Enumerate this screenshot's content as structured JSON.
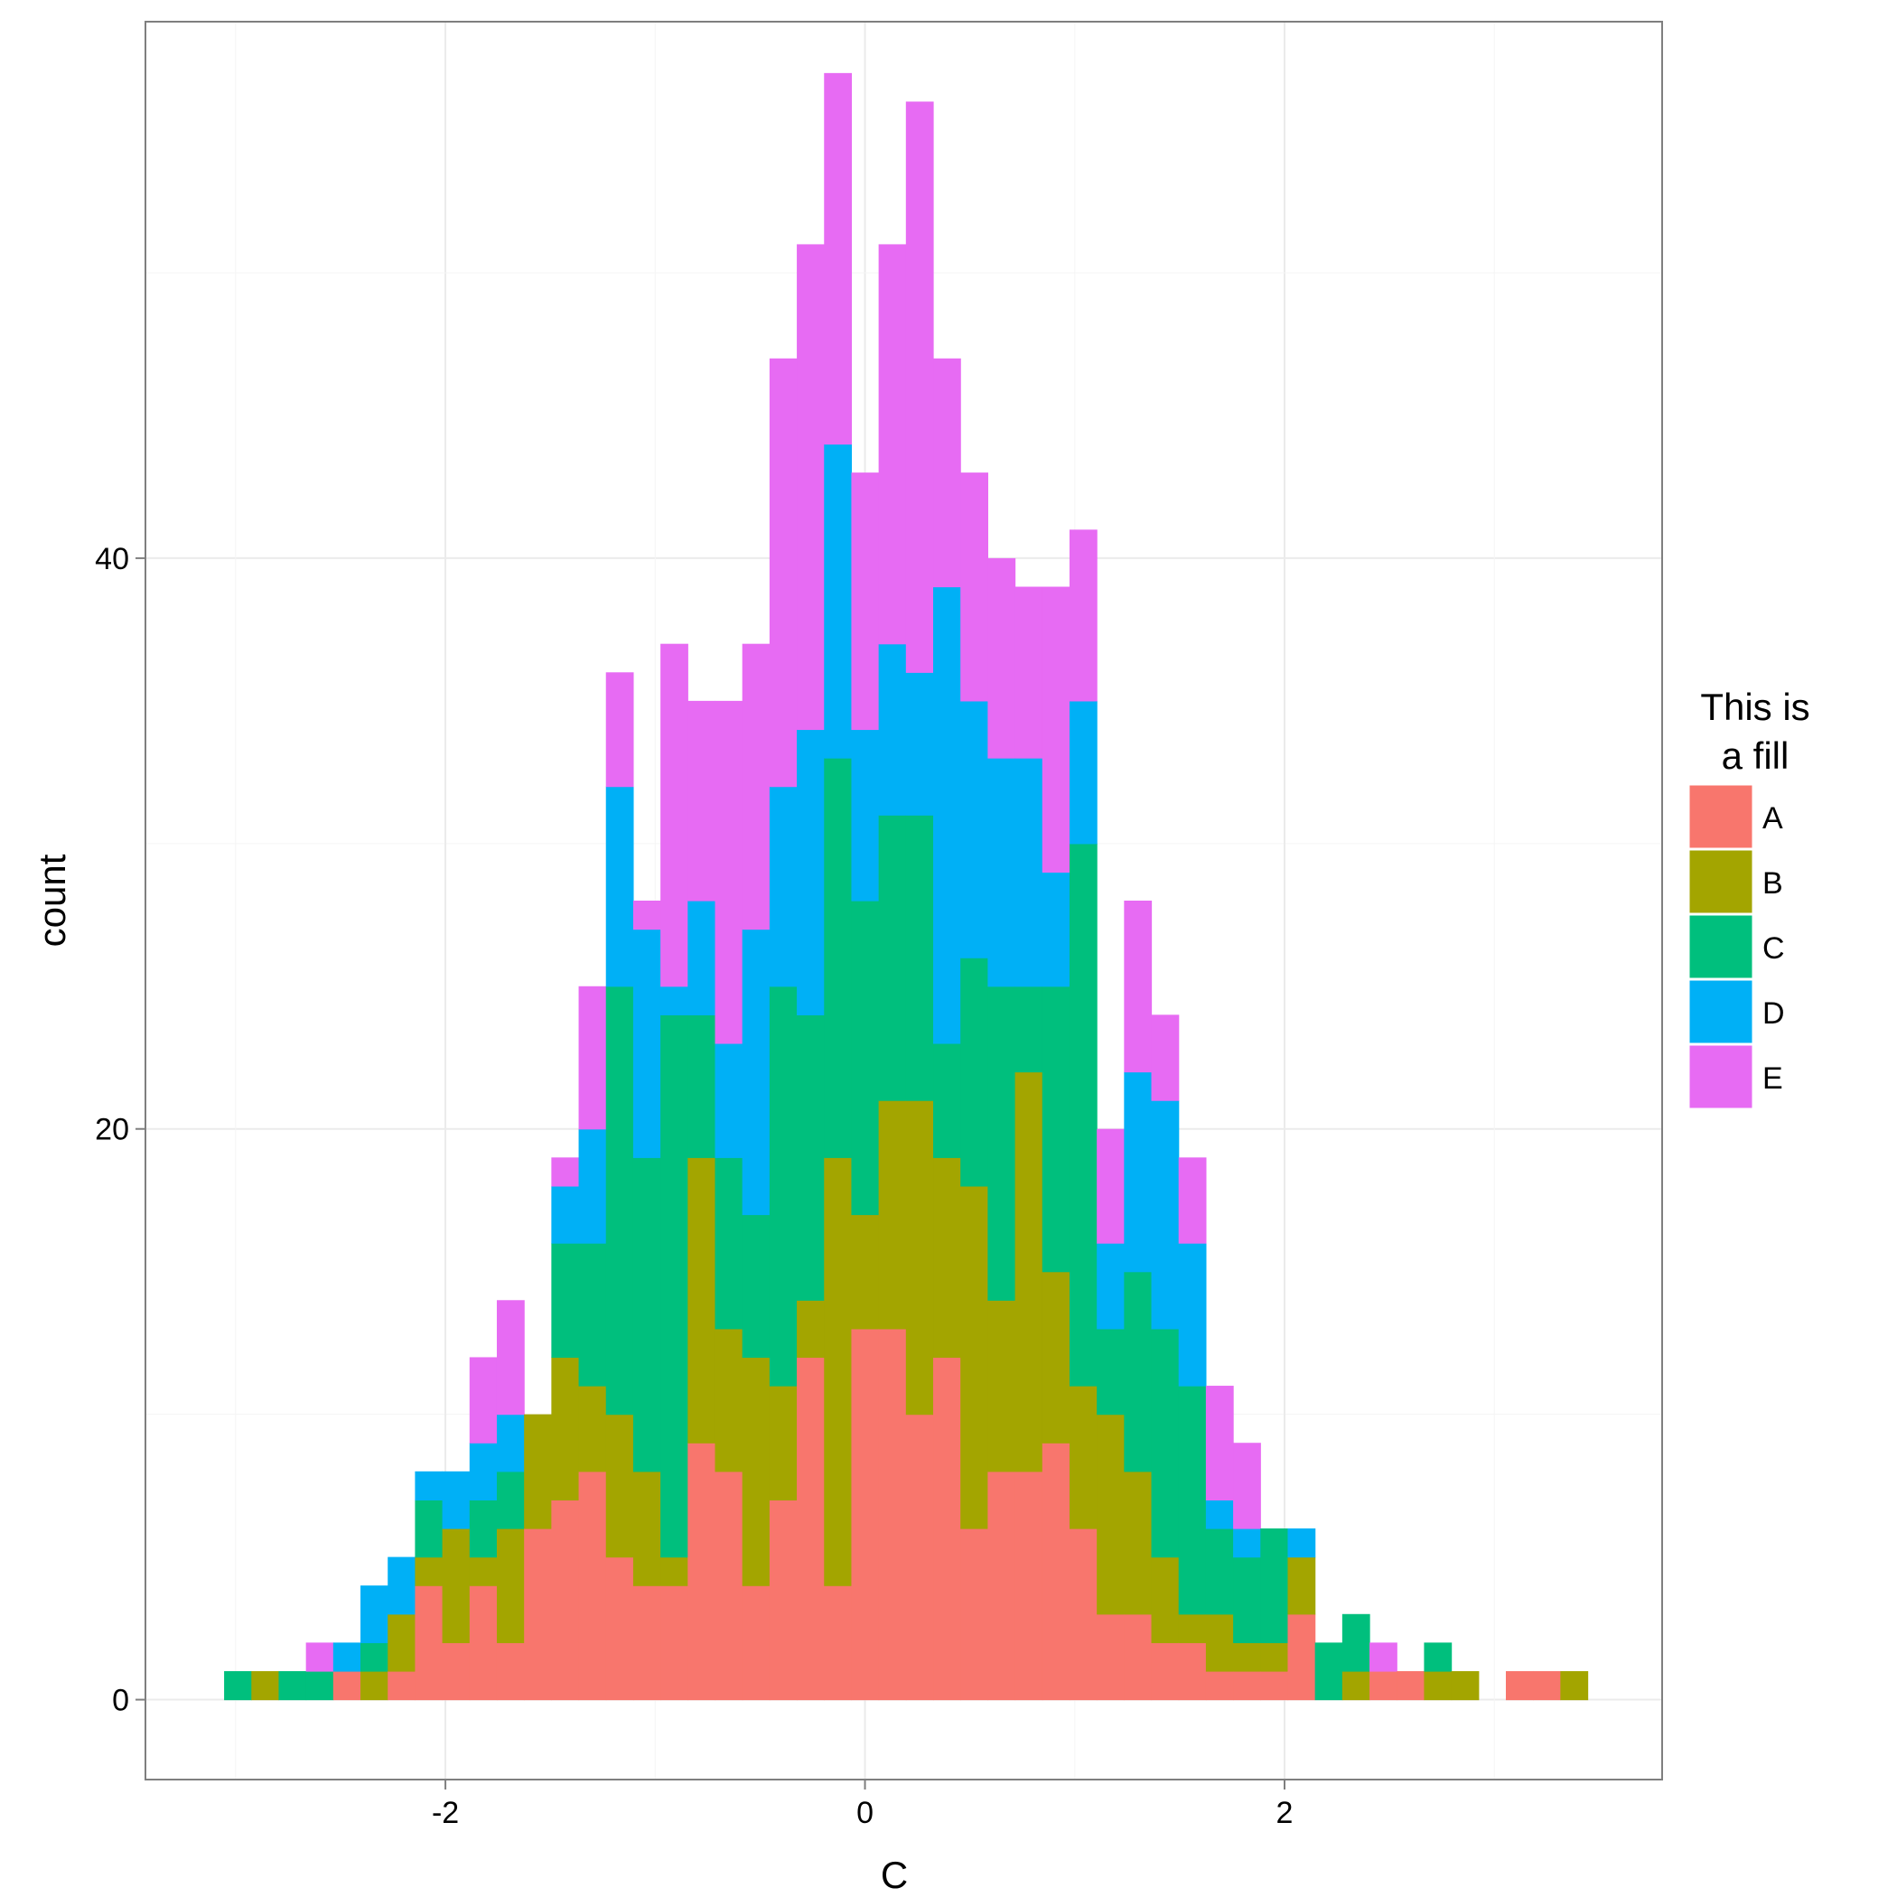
{
  "chart_data": {
    "type": "bar",
    "stacked": true,
    "histogram": true,
    "xlabel": "C",
    "ylabel": "count",
    "xlim": [
      -3.43,
      3.8
    ],
    "ylim": [
      -2.8,
      58.8
    ],
    "xticks": [
      -2,
      0,
      2
    ],
    "xtick_labels": [
      "-2",
      "0",
      "2"
    ],
    "yticks": [
      0,
      20,
      40
    ],
    "ytick_labels": [
      "0",
      "20",
      "40"
    ],
    "grid": true,
    "legend_position": "right",
    "legend": {
      "title_lines": [
        "This is",
        "a fill"
      ]
    },
    "bin_width": 0.13,
    "bin_centers": [
      -2.99,
      -2.86,
      -2.73,
      -2.6,
      -2.47,
      -2.34,
      -2.21,
      -2.08,
      -1.95,
      -1.82,
      -1.69,
      -1.56,
      -1.43,
      -1.3,
      -1.17,
      -1.04,
      -0.91,
      -0.78,
      -0.65,
      -0.52,
      -0.39,
      -0.26,
      -0.13,
      0.0,
      0.13,
      0.26,
      0.39,
      0.52,
      0.65,
      0.78,
      0.91,
      1.04,
      1.17,
      1.3,
      1.43,
      1.56,
      1.69,
      1.82,
      1.95,
      2.08,
      2.21,
      2.34,
      2.47,
      2.6,
      2.73,
      2.86,
      2.99,
      3.12,
      3.25,
      3.38
    ],
    "series": [
      {
        "name": "A",
        "color": "#F8766D",
        "values": [
          0,
          0,
          0,
          0,
          1,
          0,
          1,
          4,
          2,
          4,
          2,
          6,
          7,
          8,
          5,
          4,
          4,
          9,
          8,
          4,
          7,
          12,
          4,
          13,
          13,
          10,
          12,
          6,
          8,
          8,
          9,
          6,
          3,
          3,
          2,
          2,
          1,
          1,
          1,
          3,
          0,
          0,
          1,
          1,
          0,
          0,
          0,
          1,
          1,
          0
        ]
      },
      {
        "name": "B",
        "color": "#A3A500",
        "values": [
          0,
          1,
          0,
          0,
          0,
          1,
          2,
          1,
          4,
          1,
          4,
          4,
          5,
          3,
          5,
          4,
          1,
          10,
          5,
          8,
          4,
          2,
          15,
          4,
          8,
          11,
          7,
          12,
          6,
          14,
          6,
          5,
          7,
          5,
          3,
          1,
          2,
          1,
          1,
          2,
          0,
          1,
          0,
          0,
          1,
          1,
          0,
          0,
          0,
          1
        ]
      },
      {
        "name": "C",
        "color": "#00BF7D",
        "values": [
          1,
          0,
          1,
          1,
          0,
          1,
          0,
          2,
          0,
          2,
          2,
          0,
          4,
          5,
          15,
          11,
          19,
          5,
          6,
          5,
          14,
          10,
          14,
          11,
          10,
          10,
          4,
          8,
          11,
          3,
          10,
          19,
          3,
          7,
          8,
          8,
          3,
          3,
          4,
          0,
          2,
          2,
          0,
          0,
          1,
          0,
          0,
          0,
          0,
          0
        ]
      },
      {
        "name": "D",
        "color": "#00B0F6",
        "values": [
          0,
          0,
          0,
          0,
          1,
          2,
          2,
          1,
          2,
          2,
          2,
          0,
          2,
          4,
          7,
          8,
          1,
          4,
          4,
          10,
          7,
          10,
          11,
          6,
          6,
          5,
          16,
          9,
          8,
          8,
          4,
          5,
          3,
          7,
          8,
          5,
          1,
          1,
          0,
          1,
          0,
          0,
          0,
          0,
          0,
          0,
          0,
          0,
          0,
          0
        ]
      },
      {
        "name": "E",
        "color": "#E76BF3",
        "values": [
          0,
          0,
          0,
          1,
          0,
          0,
          0,
          0,
          0,
          3,
          4,
          0,
          1,
          5,
          4,
          1,
          12,
          7,
          12,
          10,
          15,
          17,
          13,
          9,
          14,
          20,
          8,
          8,
          7,
          6,
          10,
          6,
          4,
          6,
          3,
          3,
          4,
          3,
          0,
          0,
          0,
          0,
          1,
          0,
          0,
          0,
          0,
          0,
          0,
          0
        ]
      }
    ]
  }
}
